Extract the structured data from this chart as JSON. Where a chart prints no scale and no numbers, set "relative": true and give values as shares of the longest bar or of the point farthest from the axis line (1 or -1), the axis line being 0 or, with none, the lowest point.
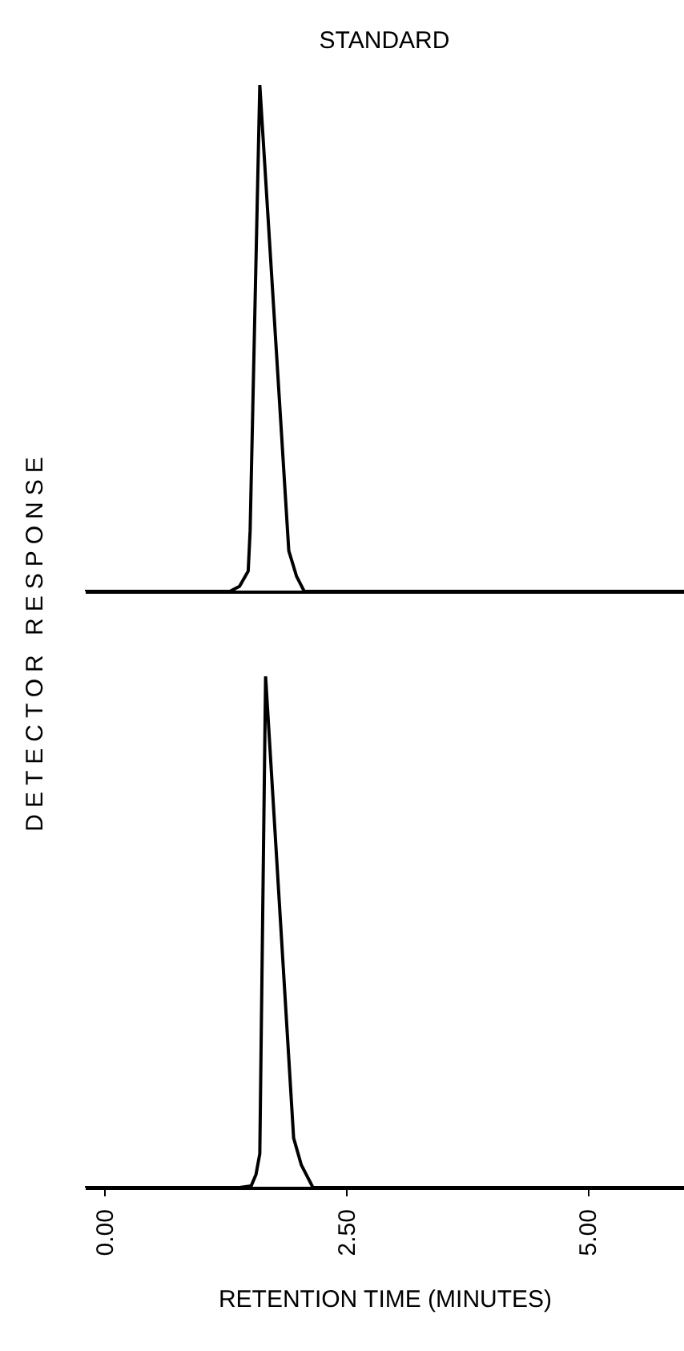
{
  "chart_data": [
    {
      "type": "line",
      "title": "STANDARD",
      "ylabel": "DETECTOR RESPONSE",
      "relative": true,
      "xlim": [
        -0.2,
        6.0
      ],
      "series": [
        {
          "color": "#000000",
          "x": [
            -0.2,
            1.3,
            1.4,
            1.49,
            1.51,
            1.61,
            1.91,
            1.99,
            2.07,
            6.0
          ],
          "values": [
            0,
            0,
            0.01,
            0.04,
            0.12,
            1,
            0.08,
            0.03,
            0,
            0
          ]
        }
      ]
    },
    {
      "type": "line",
      "xlabel": "RETENTION TIME (MINUTES)",
      "relative": true,
      "xlim": [
        -0.2,
        6.0
      ],
      "tick_labels": "x",
      "xticks": [
        {
          "value": 0,
          "label": "0.00"
        },
        {
          "value": 2.5,
          "label": "2.50"
        },
        {
          "value": 5,
          "label": "5.00"
        }
      ],
      "series": [
        {
          "color": "#000000",
          "x": [
            -0.2,
            1.4,
            1.52,
            1.57,
            1.61,
            1.67,
            1.96,
            2.04,
            2.16,
            6.0
          ],
          "values": [
            0,
            0,
            0.003,
            0.025,
            0.066,
            1,
            0.097,
            0.044,
            0,
            0
          ]
        }
      ]
    }
  ]
}
